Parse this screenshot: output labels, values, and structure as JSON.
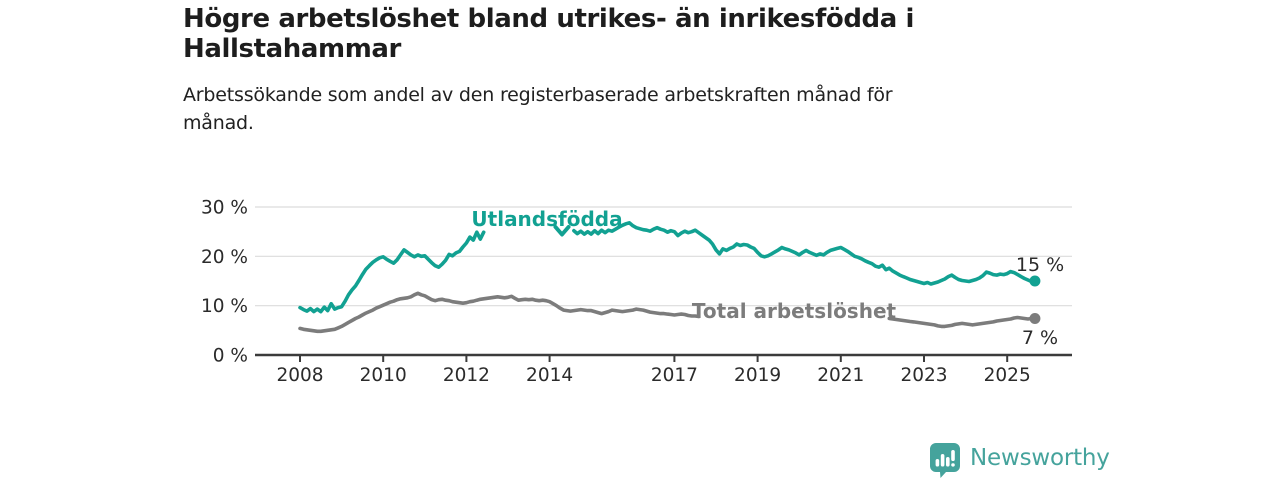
{
  "header": {
    "title_lines": [
      "Högre arbetslöshet bland utrikes- än inrikesfödda i",
      "Hallstahammar"
    ],
    "subtitle_lines": [
      "Arbetssökande som andel av den registerbaserade arbetskraften månad för",
      "månad."
    ]
  },
  "footer": {
    "brand": "Newsworthy",
    "icon": "newsworthy-bar-chart-speech-bubble-icon"
  },
  "colors": {
    "background": "#ffffff",
    "title_text": "#1d1d1d",
    "axis_text": "#2b2b2b",
    "gridline": "#dcdcdc",
    "axis_line": "#3b3b3b",
    "teal_series": "#12a192",
    "gray_series": "#7c7c7c",
    "value_label": "#2b2b2b",
    "logo_teal": "#45a39c"
  },
  "chart_data": {
    "type": "line",
    "title": "Högre arbetslöshet bland utrikes- än inrikesfödda i Hallstahammar",
    "subtitle": "Arbetssökande som andel av den registerbaserade arbetskraften månad för månad.",
    "unit": "%",
    "grid": "horizontal",
    "legend_position": "inline-labels-on-lines",
    "xlim": [
      2007,
      2026.6
    ],
    "ylim": [
      0,
      32
    ],
    "x_ticks": [
      2008,
      2010,
      2012,
      2014,
      2017,
      2019,
      2021,
      2023,
      2025
    ],
    "x_tick_labels": [
      "2008",
      "2010",
      "2012",
      "2014",
      "2017",
      "2019",
      "2021",
      "2023",
      "2025"
    ],
    "y_ticks": [
      0,
      10,
      20,
      30
    ],
    "y_tick_labels": [
      "0 %",
      "10 %",
      "20 %",
      "30 %"
    ],
    "series": [
      {
        "id": "utlandsfodda",
        "name": "Utlandsfödda",
        "color": "#12a192",
        "end_label": "15 %",
        "end_value_pct": 15.0,
        "label_marker": "down-chevron",
        "segments": [
          {
            "start": 2008.0,
            "step": 0.08333,
            "values": [
              9.6,
              9.2,
              8.9,
              9.4,
              8.8,
              9.3,
              8.8,
              9.7,
              9.0,
              10.4,
              9.3,
              9.6,
              9.8,
              10.9,
              12.2,
              13.2,
              14.0,
              15.1,
              16.3,
              17.4,
              18.1,
              18.8,
              19.3,
              19.7,
              19.9,
              19.4,
              19.0,
              18.6,
              19.3,
              20.3,
              21.3,
              20.8,
              20.3,
              19.9,
              20.3,
              20.0,
              20.1,
              19.4,
              18.7,
              18.1,
              17.8,
              18.4,
              19.2,
              20.4,
              20.1,
              20.7,
              21.0,
              21.9,
              22.7,
              23.9,
              23.3,
              24.9,
              23.5,
              24.9
            ]
          },
          {
            "start": 2014.5833,
            "step": 0.08333,
            "values": [
              25.2,
              24.6,
              25.1,
              24.5,
              25.0,
              24.5,
              25.2,
              24.6,
              25.3,
              24.8,
              25.3,
              25.1,
              25.5,
              25.9,
              26.3,
              26.6,
              26.8,
              26.2,
              25.8,
              25.6,
              25.4,
              25.3,
              25.1,
              25.5,
              25.8,
              25.5,
              25.3,
              24.9,
              25.2,
              25.0,
              24.2,
              24.7,
              25.1,
              24.8,
              25.0,
              25.3,
              24.8,
              24.3,
              23.8,
              23.3,
              22.5,
              21.3,
              20.5,
              21.5,
              21.2,
              21.6,
              21.9,
              22.5,
              22.2,
              22.4,
              22.3,
              21.9,
              21.6,
              20.8,
              20.1,
              19.9,
              20.1,
              20.5,
              20.9,
              21.3,
              21.8,
              21.5,
              21.3,
              21.0,
              20.7,
              20.3,
              20.8,
              21.2,
              20.8,
              20.5,
              20.2,
              20.5,
              20.3,
              20.8,
              21.2,
              21.4,
              21.6,
              21.8,
              21.4,
              21.0,
              20.5,
              20.0,
              19.8,
              19.5,
              19.1,
              18.8,
              18.5,
              18.0,
              17.8,
              18.2,
              17.3,
              17.6,
              17.0,
              16.6,
              16.2,
              15.9,
              15.6,
              15.3,
              15.1,
              14.9,
              14.7,
              14.5,
              14.7,
              14.4,
              14.6,
              14.8,
              15.1,
              15.4,
              15.9,
              16.2,
              15.7,
              15.3,
              15.1,
              15.0,
              14.9,
              15.1,
              15.3,
              15.6,
              16.1,
              16.8,
              16.6,
              16.3,
              16.2,
              16.4,
              16.3,
              16.5,
              16.9,
              16.7,
              16.3,
              15.9,
              15.5,
              15.2,
              14.9,
              15.0
            ]
          }
        ]
      },
      {
        "id": "total",
        "name": "Total arbetslöshet",
        "color": "#7c7c7c",
        "end_label": "7 %",
        "end_value_pct": 7.4,
        "label_marker": "none",
        "segments": [
          {
            "start": 2008.0,
            "step": 0.08333,
            "values": [
              5.4,
              5.2,
              5.1,
              5.0,
              4.9,
              4.8,
              4.8,
              4.9,
              5.0,
              5.1,
              5.2,
              5.5,
              5.8,
              6.2,
              6.6,
              7.0,
              7.4,
              7.7,
              8.1,
              8.5,
              8.8,
              9.1,
              9.5,
              9.8,
              10.1,
              10.4,
              10.7,
              10.9,
              11.2,
              11.4,
              11.5,
              11.6,
              11.8,
              12.2,
              12.5,
              12.2,
              12.0,
              11.6,
              11.2,
              11.0,
              11.2,
              11.3,
              11.1,
              11.0,
              10.8,
              10.7,
              10.6,
              10.5,
              10.6,
              10.8,
              10.9,
              11.1,
              11.3,
              11.4,
              11.5,
              11.6,
              11.7,
              11.8,
              11.7,
              11.6,
              11.7,
              11.9,
              11.5,
              11.1,
              11.2,
              11.3,
              11.2,
              11.3,
              11.1,
              11.0,
              11.1,
              11.0,
              10.8,
              10.4,
              10.0,
              9.5,
              9.1,
              9.0,
              8.9,
              9.0,
              9.1,
              9.2,
              9.1,
              9.0,
              9.0,
              8.8,
              8.6,
              8.4,
              8.6,
              8.8,
              9.1,
              9.0,
              8.9,
              8.8,
              8.9,
              9.0,
              9.1,
              9.3,
              9.2,
              9.1,
              8.9,
              8.7,
              8.6,
              8.5,
              8.4,
              8.4,
              8.3,
              8.2,
              8.1,
              8.2,
              8.3,
              8.2,
              8.0,
              7.9,
              7.9,
              7.8
            ]
          },
          {
            "start": 2022.1667,
            "step": 0.08333,
            "values": [
              7.4,
              7.3,
              7.2,
              7.1,
              7.0,
              6.9,
              6.8,
              6.7,
              6.6,
              6.5,
              6.4,
              6.3,
              6.2,
              6.1,
              5.9,
              5.8,
              5.8,
              5.9,
              6.0,
              6.2,
              6.3,
              6.4,
              6.3,
              6.2,
              6.1,
              6.2,
              6.3,
              6.4,
              6.5,
              6.6,
              6.7,
              6.9,
              7.0,
              7.1,
              7.2,
              7.3,
              7.5,
              7.6,
              7.5,
              7.4,
              7.3,
              7.4,
              7.4
            ]
          }
        ]
      }
    ]
  }
}
